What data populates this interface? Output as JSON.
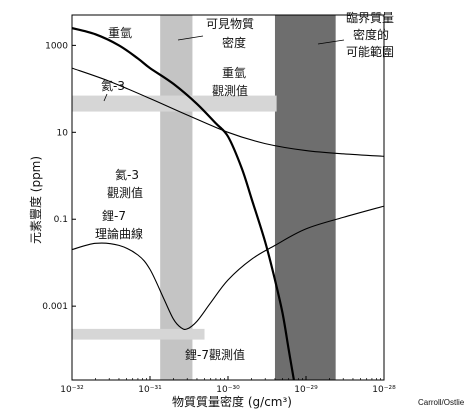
{
  "chart_data": {
    "type": "line",
    "title": "",
    "xlabel": "物質質量密度 (g/cm³)",
    "ylabel": "元素豐度 (ppm)",
    "x_scale": "log",
    "y_scale": "log",
    "xlim": [
      1e-32,
      1e-28
    ],
    "ylim": [
      2e-05,
      5000
    ],
    "x_ticks": [
      {
        "value": 1e-32,
        "label": "10⁻³²"
      },
      {
        "value": 1e-31,
        "label": "10⁻³¹"
      },
      {
        "value": 1e-30,
        "label": "10⁻³⁰"
      },
      {
        "value": 1e-29,
        "label": "10⁻²⁹"
      },
      {
        "value": 1e-28,
        "label": "10⁻²⁸"
      }
    ],
    "y_ticks": [
      {
        "value": 1000,
        "label": "1000"
      },
      {
        "value": 10,
        "label": "10"
      },
      {
        "value": 0.1,
        "label": "0.1"
      },
      {
        "value": 0.001,
        "label": "0.001"
      }
    ],
    "series": [
      {
        "name": "重氫",
        "line_weight": "heavy",
        "x": [
          1e-32,
          2e-32,
          4e-32,
          7e-32,
          1e-31,
          2e-31,
          4e-31,
          7e-31,
          1e-30,
          1.5e-30,
          2e-30,
          3e-30,
          4e-30,
          5e-30,
          6e-30,
          7e-30
        ],
        "y": [
          2500,
          1800,
          1000,
          500,
          300,
          130,
          45,
          16,
          8,
          1.5,
          0.3,
          0.03,
          0.004,
          0.0007,
          0.0001,
          2e-05
        ]
      },
      {
        "name": "氦-3",
        "line_weight": "thin",
        "x": [
          1e-32,
          3e-32,
          1e-31,
          3e-31,
          1e-30,
          3e-30,
          1e-29,
          3e-29,
          1e-28
        ],
        "y": [
          300,
          150,
          60,
          25,
          10,
          5.5,
          3.8,
          3.2,
          2.8
        ]
      },
      {
        "name": "鋰-7理論曲線",
        "line_weight": "thin",
        "x": [
          1e-32,
          2e-32,
          4e-32,
          7e-32,
          1e-31,
          1.5e-31,
          2e-31,
          2.5e-31,
          3e-31,
          4e-31,
          6e-31,
          1e-30,
          2e-30,
          4e-30,
          1e-29,
          3e-29,
          1e-28
        ],
        "y": [
          0.02,
          0.028,
          0.025,
          0.015,
          0.007,
          0.0015,
          0.0005,
          0.00032,
          0.0003,
          0.00045,
          0.0012,
          0.004,
          0.012,
          0.025,
          0.06,
          0.11,
          0.2
        ]
      }
    ],
    "bands": [
      {
        "label": "可見物質密度",
        "orientation": "vertical",
        "x_range": [
          1.35e-31,
          3.5e-31
        ],
        "shade": "#c4c4c4"
      },
      {
        "label": "臨界質量密度的可能範圍",
        "orientation": "vertical",
        "x_range": [
          4e-30,
          2.4e-29
        ],
        "shade": "#6e6e6e"
      },
      {
        "label": "重氫觀測值",
        "orientation": "horizontal",
        "x_range": [
          1e-32,
          4.2e-30
        ],
        "y_range": [
          30,
          70
        ],
        "shade": "#d6d6d6"
      },
      {
        "label": "鋰-7觀測值",
        "orientation": "horizontal",
        "x_range": [
          1e-32,
          5e-31
        ],
        "y_range": [
          0.00017,
          0.0003
        ],
        "shade": "#d6d6d6"
      }
    ],
    "labels": {
      "deuterium": "重氫",
      "helium3": "氦-3",
      "visible_line1": "可見物質",
      "visible_line2": "密度",
      "critical_line1": "臨界質量",
      "critical_line2": "密度的",
      "critical_line3": "可能範圍",
      "deut_obs_line1": "重氫",
      "deut_obs_line2": "觀測值",
      "he3_obs_line1": "氦-3",
      "he3_obs_line2": "觀測值",
      "li7_theory_line1": "鋰-7",
      "li7_theory_line2": "理論曲線",
      "li7_obs": "鋰-7觀測值"
    },
    "credit": "Carroll/Ostlie",
    "grid": false,
    "legend": "none"
  }
}
